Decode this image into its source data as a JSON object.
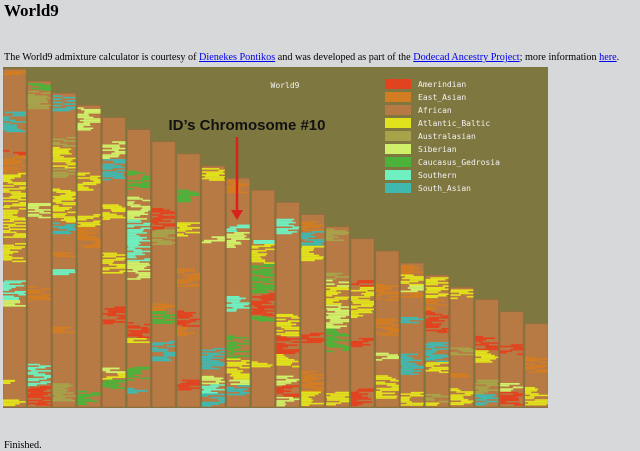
{
  "page": {
    "heading": "World9",
    "intro": {
      "text_1": "The World9 admixture calculator is courtesy of ",
      "link_author": "Dienekes Pontikos",
      "text_2": " and was developed as part of the ",
      "link_project": "Dodecad Ancestry Project",
      "text_3": "; more information ",
      "link_more": "here",
      "text_4": "."
    },
    "status": "Finished."
  },
  "plot": {
    "title": "World9",
    "annotation": "ID’s Chromosome #10",
    "chromosome_count": 22,
    "highlighted_chromosome": 10,
    "colors": {
      "background": "#7f7740",
      "african": "#b77a45",
      "arrow": "#d7231b"
    },
    "legend": [
      {
        "name": "Amerindian",
        "color": "#e2421e"
      },
      {
        "name": "East_Asian",
        "color": "#d37d22"
      },
      {
        "name": "African",
        "color": "#b77a45"
      },
      {
        "name": "Atlantic_Baltic",
        "color": "#e2e21c"
      },
      {
        "name": "Australasian",
        "color": "#a7a34a"
      },
      {
        "name": "Siberian",
        "color": "#d0f06a"
      },
      {
        "name": "Caucasus_Gedrosia",
        "color": "#4cb33a"
      },
      {
        "name": "Southern",
        "color": "#6ef0c0"
      },
      {
        "name": "South_Asian",
        "color": "#3fb8b0"
      }
    ]
  }
}
